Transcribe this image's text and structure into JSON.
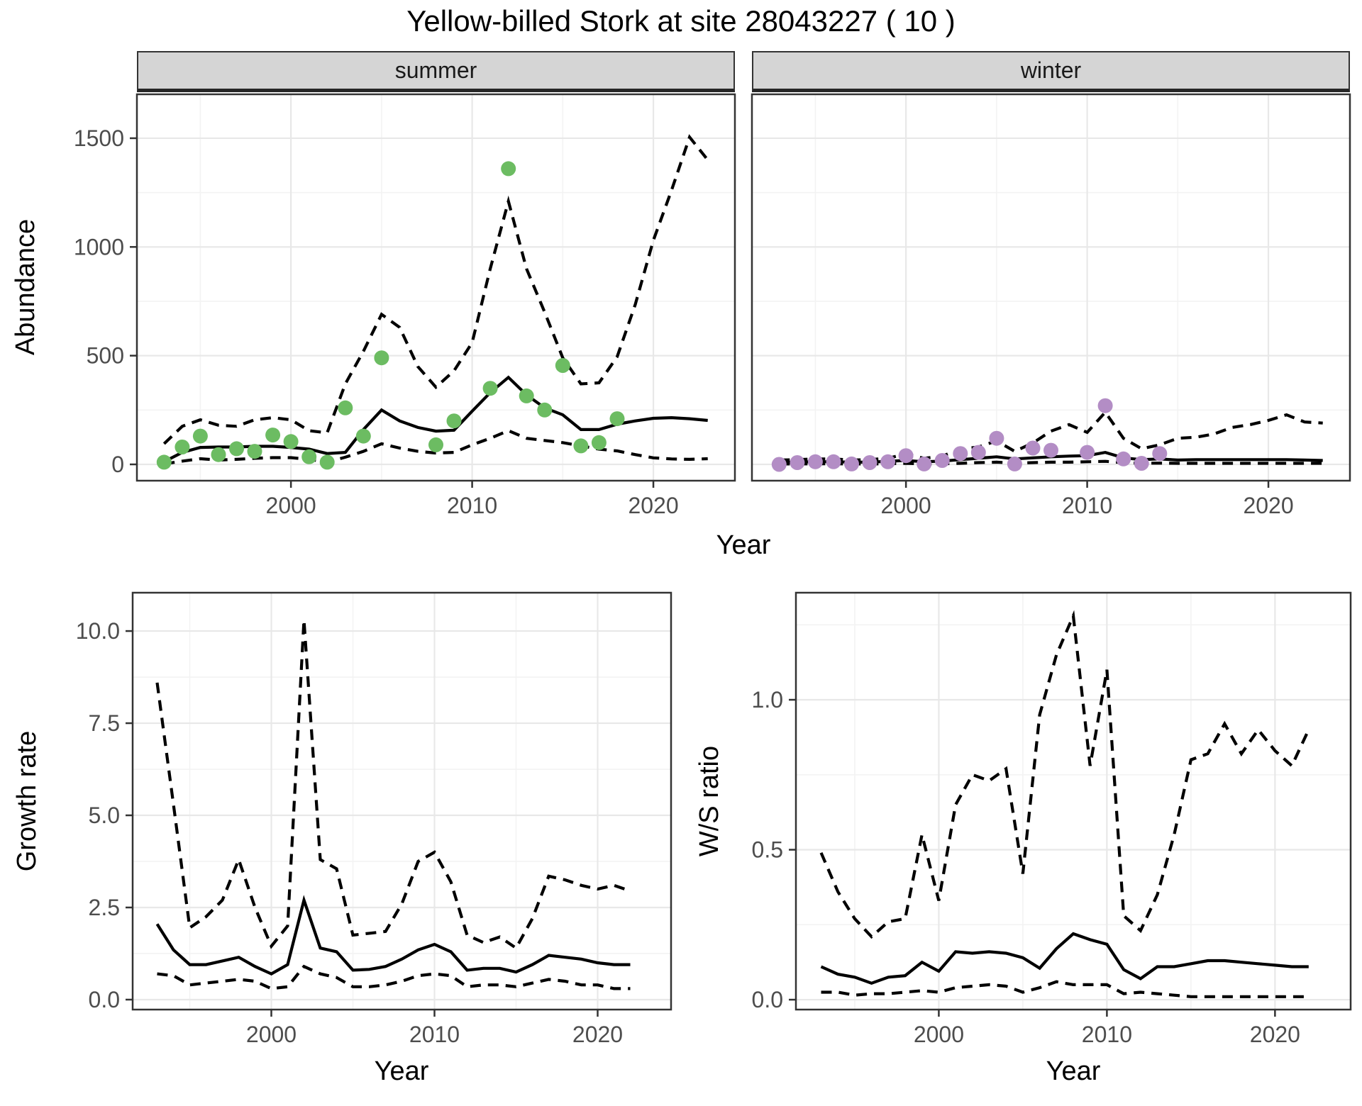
{
  "title": "Yellow-billed Stork at site 28043227 ( 10 )",
  "colors": {
    "summer_point": "#6cbc62",
    "winter_point": "#b38dc5",
    "line": "#000000",
    "grid_major": "#e8e8e8",
    "grid_minor": "#f3f3f3",
    "panel_border": "#333333",
    "strip_bg": "#d5d5d5",
    "axis_text": "#4d4d4d"
  },
  "chart_data": [
    {
      "id": "abundance-summer",
      "type": "line",
      "facet_label": "summer",
      "xlabel": "Year",
      "ylabel": "Abundance",
      "xlim": [
        1991.5,
        2024.5
      ],
      "ylim": [
        -75,
        1702
      ],
      "xticks": {
        "values": [
          2000,
          2010,
          2020
        ],
        "labels": [
          "2000",
          "2010",
          "2020"
        ]
      },
      "yticks": {
        "values": [
          0,
          500,
          1000,
          1500
        ],
        "labels": [
          "0",
          "500",
          "1000",
          "1500"
        ]
      },
      "x_minor": [
        1995,
        2005,
        2015
      ],
      "y_minor": [
        250,
        750,
        1250
      ],
      "years": [
        1993,
        1994,
        1995,
        1996,
        1997,
        1998,
        1999,
        2000,
        2001,
        2002,
        2003,
        2004,
        2005,
        2006,
        2007,
        2008,
        2009,
        2010,
        2011,
        2012,
        2013,
        2014,
        2015,
        2016,
        2017,
        2018,
        2019,
        2020,
        2021,
        2022,
        2023
      ],
      "series": [
        {
          "name": "model fit",
          "style": "solid",
          "values": [
            12,
            55,
            78,
            80,
            80,
            83,
            83,
            78,
            70,
            50,
            55,
            160,
            250,
            200,
            170,
            153,
            157,
            245,
            330,
            400,
            320,
            260,
            228,
            160,
            160,
            185,
            200,
            212,
            215,
            210,
            202
          ]
        },
        {
          "name": "upper 95% CI",
          "style": "dashed",
          "values": [
            95,
            175,
            205,
            180,
            175,
            205,
            215,
            205,
            155,
            145,
            370,
            520,
            690,
            630,
            450,
            355,
            430,
            560,
            900,
            1210,
            900,
            700,
            490,
            370,
            375,
            495,
            735,
            1030,
            1260,
            1505,
            1400
          ]
        },
        {
          "name": "lower 95% CI",
          "style": "dashed",
          "values": [
            2,
            15,
            26,
            20,
            23,
            28,
            31,
            31,
            23,
            10,
            33,
            60,
            95,
            75,
            60,
            52,
            55,
            90,
            120,
            155,
            120,
            110,
            100,
            85,
            70,
            62,
            45,
            30,
            25,
            23,
            26
          ]
        }
      ],
      "points": {
        "name": "observed counts (summer)",
        "color": "#6cbc62",
        "x": [
          1993,
          1994,
          1995,
          1996,
          1997,
          1998,
          1999,
          2000,
          2001,
          2002,
          2003,
          2004,
          2005,
          2008,
          2009,
          2011,
          2012,
          2013,
          2014,
          2015,
          2016,
          2017,
          2018
        ],
        "y": [
          10,
          80,
          130,
          45,
          72,
          60,
          135,
          105,
          35,
          10,
          260,
          130,
          490,
          90,
          200,
          350,
          1360,
          315,
          250,
          455,
          85,
          100,
          210
        ]
      }
    },
    {
      "id": "abundance-winter",
      "type": "line",
      "facet_label": "winter",
      "xlabel": "Year",
      "ylabel": "Abundance",
      "xlim": [
        1991.5,
        2024.5
      ],
      "ylim": [
        -75,
        1702
      ],
      "xticks": {
        "values": [
          2000,
          2010,
          2020
        ],
        "labels": [
          "2000",
          "2010",
          "2020"
        ]
      },
      "yticks": {
        "values": [
          0,
          500,
          1000,
          1500
        ],
        "labels": [
          "0",
          "500",
          "1000",
          "1500"
        ]
      },
      "x_minor": [
        1995,
        2005,
        2015
      ],
      "y_minor": [
        250,
        750,
        1250
      ],
      "years": [
        1993,
        1994,
        1995,
        1996,
        1997,
        1998,
        1999,
        2000,
        2001,
        2002,
        2003,
        2004,
        2005,
        2006,
        2007,
        2008,
        2009,
        2010,
        2011,
        2012,
        2013,
        2014,
        2015,
        2016,
        2017,
        2018,
        2019,
        2020,
        2021,
        2022,
        2023
      ],
      "series": [
        {
          "name": "model fit",
          "style": "solid",
          "values": [
            8,
            10,
            12,
            12,
            10,
            10,
            14,
            18,
            12,
            15,
            22,
            28,
            35,
            25,
            30,
            35,
            38,
            40,
            55,
            30,
            22,
            25,
            20,
            22,
            22,
            22,
            22,
            22,
            22,
            20,
            18
          ]
        },
        {
          "name": "upper 95% CI",
          "style": "dashed",
          "values": [
            20,
            22,
            25,
            25,
            20,
            22,
            28,
            48,
            28,
            38,
            70,
            80,
            108,
            60,
            98,
            153,
            183,
            147,
            240,
            120,
            72,
            90,
            120,
            125,
            140,
            170,
            183,
            202,
            228,
            195,
            190
          ]
        },
        {
          "name": "lower 95% CI",
          "style": "dashed",
          "values": [
            2,
            2,
            3,
            3,
            2,
            2,
            3,
            5,
            2,
            3,
            5,
            8,
            10,
            6,
            8,
            10,
            10,
            12,
            14,
            8,
            5,
            6,
            5,
            5,
            5,
            5,
            5,
            5,
            5,
            5,
            5
          ]
        }
      ],
      "points": {
        "name": "observed counts (winter)",
        "color": "#b38dc5",
        "x": [
          1993,
          1994,
          1995,
          1996,
          1997,
          1998,
          1999,
          2000,
          2001,
          2002,
          2003,
          2004,
          2005,
          2006,
          2007,
          2008,
          2010,
          2011,
          2012,
          2013,
          2014
        ],
        "y": [
          0,
          8,
          12,
          12,
          2,
          8,
          12,
          40,
          2,
          18,
          50,
          55,
          120,
          2,
          75,
          65,
          55,
          270,
          25,
          5,
          50
        ]
      }
    },
    {
      "id": "growth-rate",
      "type": "line",
      "facet_label": "",
      "xlabel": "Year",
      "ylabel": "Growth rate",
      "xlim": [
        1991.5,
        2024.5
      ],
      "ylim": [
        -0.27,
        11.04
      ],
      "xticks": {
        "values": [
          2000,
          2010,
          2020
        ],
        "labels": [
          "2000",
          "2010",
          "2020"
        ]
      },
      "yticks": {
        "values": [
          0,
          2.5,
          5,
          7.5,
          10
        ],
        "labels": [
          "0.0",
          "2.5",
          "5.0",
          "7.5",
          "10.0"
        ]
      },
      "x_minor": [
        1995,
        2005,
        2015
      ],
      "y_minor": [
        1.25,
        3.75,
        6.25,
        8.75
      ],
      "years": [
        1993,
        1994,
        1995,
        1996,
        1997,
        1998,
        1999,
        2000,
        2001,
        2002,
        2003,
        2004,
        2005,
        2006,
        2007,
        2008,
        2009,
        2010,
        2011,
        2012,
        2013,
        2014,
        2015,
        2016,
        2017,
        2018,
        2019,
        2020,
        2021,
        2022
      ],
      "series": [
        {
          "name": "growth rate estimate",
          "style": "solid",
          "values": [
            2.05,
            1.35,
            0.95,
            0.95,
            1.05,
            1.15,
            0.9,
            0.7,
            0.95,
            2.7,
            1.4,
            1.3,
            0.8,
            0.82,
            0.9,
            1.1,
            1.35,
            1.5,
            1.3,
            0.8,
            0.85,
            0.85,
            0.75,
            0.95,
            1.2,
            1.15,
            1.1,
            1.0,
            0.95,
            0.95
          ]
        },
        {
          "name": "upper 95% CI",
          "style": "dashed",
          "values": [
            8.6,
            5.3,
            1.95,
            2.25,
            2.7,
            3.8,
            2.5,
            1.45,
            2.0,
            10.3,
            3.8,
            3.55,
            1.75,
            1.8,
            1.85,
            2.6,
            3.75,
            4.0,
            3.2,
            1.75,
            1.55,
            1.7,
            1.4,
            2.2,
            3.35,
            3.25,
            3.1,
            3.0,
            3.1,
            2.95
          ]
        },
        {
          "name": "lower 95% CI",
          "style": "dashed",
          "values": [
            0.7,
            0.65,
            0.4,
            0.45,
            0.5,
            0.55,
            0.5,
            0.3,
            0.35,
            0.9,
            0.7,
            0.6,
            0.35,
            0.35,
            0.4,
            0.5,
            0.65,
            0.7,
            0.65,
            0.35,
            0.4,
            0.4,
            0.35,
            0.45,
            0.55,
            0.5,
            0.4,
            0.4,
            0.3,
            0.3
          ]
        }
      ],
      "points": null
    },
    {
      "id": "ws-ratio",
      "type": "line",
      "facet_label": "",
      "xlabel": "Year",
      "ylabel": "W/S ratio",
      "xlim": [
        1991.5,
        2024.5
      ],
      "ylim": [
        -0.033,
        1.357
      ],
      "xticks": {
        "values": [
          2000,
          2010,
          2020
        ],
        "labels": [
          "2000",
          "2010",
          "2020"
        ]
      },
      "yticks": {
        "values": [
          0,
          0.5,
          1.0
        ],
        "labels": [
          "0.0",
          "0.5",
          "1.0"
        ]
      },
      "x_minor": [
        1995,
        2005,
        2015
      ],
      "y_minor": [
        0.25,
        0.75,
        1.25
      ],
      "years": [
        1993,
        1994,
        1995,
        1996,
        1997,
        1998,
        1999,
        2000,
        2001,
        2002,
        2003,
        2004,
        2005,
        2006,
        2007,
        2008,
        2009,
        2010,
        2011,
        2012,
        2013,
        2014,
        2015,
        2016,
        2017,
        2018,
        2019,
        2020,
        2021,
        2022
      ],
      "series": [
        {
          "name": "W/S ratio estimate",
          "style": "solid",
          "values": [
            0.11,
            0.085,
            0.075,
            0.055,
            0.075,
            0.08,
            0.125,
            0.095,
            0.16,
            0.155,
            0.16,
            0.155,
            0.14,
            0.105,
            0.17,
            0.22,
            0.2,
            0.185,
            0.1,
            0.07,
            0.11,
            0.11,
            0.12,
            0.13,
            0.13,
            0.125,
            0.12,
            0.115,
            0.11,
            0.11
          ]
        },
        {
          "name": "upper 95% CI",
          "style": "dashed",
          "values": [
            0.49,
            0.36,
            0.27,
            0.21,
            0.26,
            0.27,
            0.55,
            0.33,
            0.65,
            0.75,
            0.73,
            0.77,
            0.42,
            0.95,
            1.15,
            1.28,
            0.78,
            1.1,
            0.28,
            0.23,
            0.35,
            0.55,
            0.8,
            0.82,
            0.92,
            0.82,
            0.9,
            0.83,
            0.78,
            0.9
          ]
        },
        {
          "name": "lower 95% CI",
          "style": "dashed",
          "values": [
            0.025,
            0.025,
            0.015,
            0.02,
            0.02,
            0.025,
            0.03,
            0.025,
            0.04,
            0.045,
            0.05,
            0.045,
            0.025,
            0.04,
            0.06,
            0.05,
            0.05,
            0.05,
            0.02,
            0.025,
            0.02,
            0.015,
            0.01,
            0.01,
            0.01,
            0.01,
            0.01,
            0.01,
            0.01,
            0.01
          ]
        }
      ],
      "points": null
    }
  ]
}
